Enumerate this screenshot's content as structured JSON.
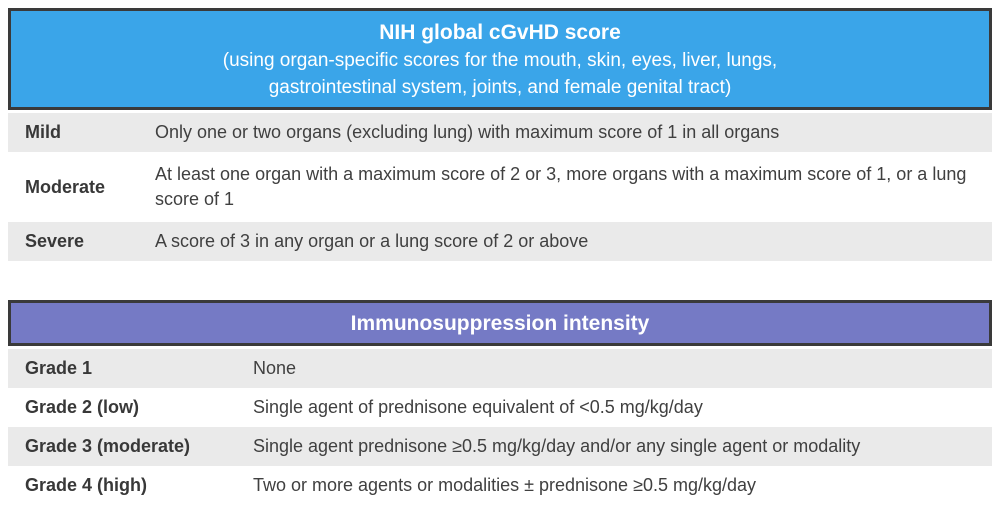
{
  "colors": {
    "nih_header_bg": "#3aa5e9",
    "immuno_header_bg": "#757ac5",
    "header_border": "#3a3a3a",
    "shaded_row_bg": "#eaeaea",
    "body_text": "#404040",
    "header_text": "#ffffff"
  },
  "tables": [
    {
      "header": {
        "title": "NIH global cGvHD score",
        "subtitle_line1": "(using organ-specific scores for the mouth, skin, eyes, liver, lungs,",
        "subtitle_line2": "gastrointestinal system, joints, and female genital tract)"
      },
      "rows": [
        {
          "label": "Mild",
          "description": "Only one or two organs (excluding lung) with maximum score of 1 in all organs"
        },
        {
          "label": "Moderate",
          "description": "At least one organ with a maximum score of 2 or 3, more organs with a maximum score of 1, or a lung score of 1"
        },
        {
          "label": "Severe",
          "description": "A score of 3 in any organ or a lung score of 2 or above"
        }
      ]
    },
    {
      "header": {
        "title": "Immunosuppression intensity"
      },
      "rows": [
        {
          "label": "Grade 1",
          "description": "None"
        },
        {
          "label": "Grade 2 (low)",
          "description": "Single agent of prednisone equivalent of <0.5 mg/kg/day"
        },
        {
          "label": "Grade 3 (moderate)",
          "description": "Single agent prednisone ≥0.5 mg/kg/day and/or any single agent or modality"
        },
        {
          "label": "Grade 4 (high)",
          "description": "Two or more agents or modalities ± prednisone ≥0.5 mg/kg/day"
        }
      ]
    }
  ]
}
